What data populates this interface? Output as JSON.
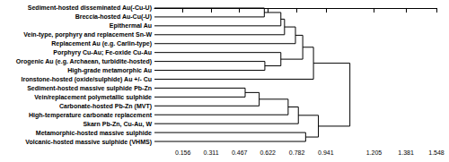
{
  "chart_data": {
    "type": "dendrogram",
    "leaves": [
      "Sediment-hosted disseminated Au(-Cu-U)",
      "Breccia-hosted Au-Cu(-U)",
      "Epithermal Au",
      "Vein-type, porphyry and replacement Sn-W",
      "Replacement Au (e.g. Carlin-type)",
      "Porphyry Cu-Au; Fe-oxide Cu-Au",
      "Orogenic Au (e.g. Archaean, turbidite-hosted)",
      "High-grade metamorphic Au",
      "Ironstone-hosted (oxide/sulphide) Au +/- Cu",
      "Sediment-hosted massive sulphide Pb-Zn",
      "Vein/replacement polymetallic sulphide",
      "Carbonate-hosted Pb-Zn (MVT)",
      "High-temperature carbonate replacement",
      "Skarn Pb-Zn, Cu-Au, W",
      "Metamorphic-hosted massive sulphide",
      "Volcanic-hosted massive sulphide (VHMS)"
    ],
    "merges": [
      [
        0,
        1,
        0.603
      ],
      [
        16,
        2,
        0.694
      ],
      [
        17,
        3,
        0.714
      ],
      [
        18,
        4,
        0.774
      ],
      [
        6,
        7,
        0.606
      ],
      [
        5,
        20,
        0.694
      ],
      [
        19,
        21,
        0.814
      ],
      [
        22,
        8,
        0.873
      ],
      [
        9,
        10,
        0.498
      ],
      [
        24,
        11,
        0.575
      ],
      [
        25,
        12,
        0.734
      ],
      [
        26,
        13,
        0.79
      ],
      [
        14,
        15,
        0.83
      ],
      [
        27,
        28,
        0.9
      ],
      [
        23,
        29,
        1.073
      ]
    ],
    "color": "#000000",
    "xlim": [
      0,
      1.548
    ],
    "xticks": [
      0.156,
      0.311,
      0.467,
      0.622,
      0.782,
      0.941,
      1.205,
      1.381,
      1.548
    ],
    "grid": false
  }
}
